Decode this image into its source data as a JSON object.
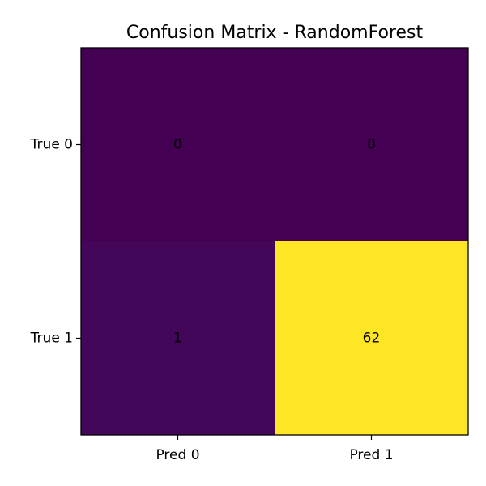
{
  "chart_data": {
    "type": "heatmap",
    "title": "Confusion Matrix - RandomForest",
    "row_labels": [
      "True 0",
      "True 1"
    ],
    "col_labels": [
      "Pred 0",
      "Pred 1"
    ],
    "values": [
      [
        0,
        0
      ],
      [
        1,
        62
      ]
    ],
    "value_range": [
      0,
      62
    ],
    "colormap": "viridis",
    "colors": {
      "low": "#440154",
      "high": "#fde725"
    },
    "grid": false,
    "legend": "none"
  }
}
